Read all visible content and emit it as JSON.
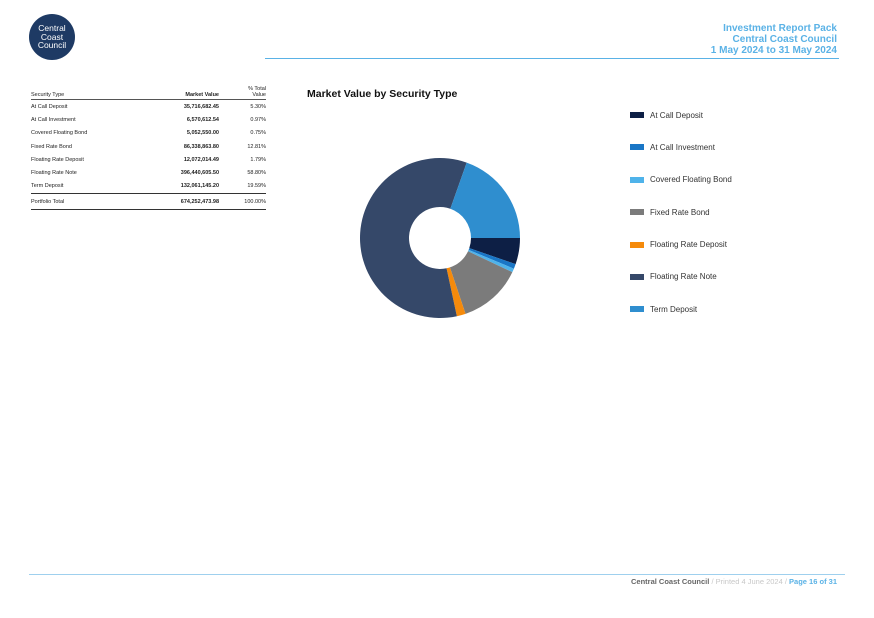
{
  "logo": {
    "line1": "Central",
    "line2": "Coast",
    "line3": "Council"
  },
  "header": {
    "title": "Investment Report Pack",
    "org": "Central Coast Council",
    "period": "1 May 2024 to 31 May 2024"
  },
  "table": {
    "headers": {
      "security_type": "Security Type",
      "market_value": "Market Value",
      "pct_line1": "% Total",
      "pct_line2": "Value"
    },
    "rows": [
      {
        "type": "At Call Deposit",
        "value": "35,716,682.45",
        "pct": "5.30%"
      },
      {
        "type": "At Call Investment",
        "value": "6,570,612.54",
        "pct": "0.97%"
      },
      {
        "type": "Covered Floating Bond",
        "value": "5,052,550.00",
        "pct": "0.75%"
      },
      {
        "type": "Fixed Rate Bond",
        "value": "86,338,863.80",
        "pct": "12.81%"
      },
      {
        "type": "Floating Rate Deposit",
        "value": "12,072,014.49",
        "pct": "1.79%"
      },
      {
        "type": "Floating Rate Note",
        "value": "396,440,605.50",
        "pct": "58.80%"
      },
      {
        "type": "Term Deposit",
        "value": "132,061,145.20",
        "pct": "19.59%"
      }
    ],
    "total": {
      "label": "Portfolio Total",
      "value": "674,252,473.98",
      "pct": "100.00%"
    }
  },
  "chart_data": {
    "type": "pie",
    "title": "Market Value by Security Type",
    "donut": true,
    "legend_position": "right",
    "categories": [
      "At Call Deposit",
      "At Call Investment",
      "Covered Floating Bond",
      "Fixed Rate Bond",
      "Floating Rate Deposit",
      "Floating Rate Note",
      "Term Deposit"
    ],
    "values": [
      5.3,
      0.97,
      0.75,
      12.81,
      1.79,
      58.8,
      19.59
    ],
    "colors": [
      "#0d1f45",
      "#1976c6",
      "#4fb3ea",
      "#7b7b7b",
      "#f58a0b",
      "#354869",
      "#2f8ecf"
    ]
  },
  "footer": {
    "org": "Central Coast Council",
    "separator": "/",
    "printed": "Printed 4 June 2024",
    "page": "Page 16 of 31"
  }
}
